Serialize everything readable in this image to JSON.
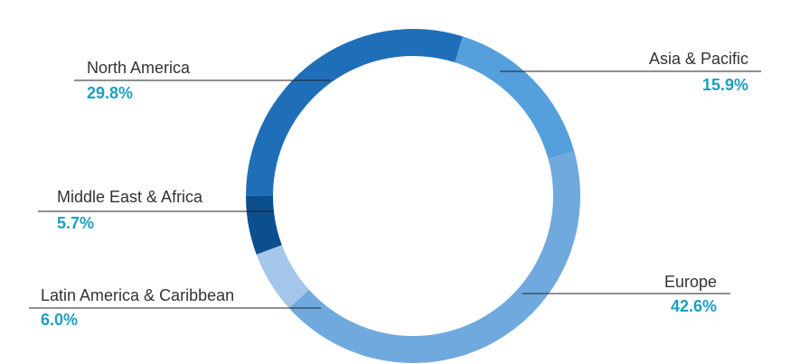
{
  "chart_data": {
    "type": "donut",
    "series": [
      {
        "name": "Asia & Pacific",
        "color": "#559fdc",
        "values": [
          15.9
        ],
        "value_labels": [
          "15.9%"
        ]
      },
      {
        "name": "Europe",
        "color": "#6fa9de",
        "values": [
          42.6
        ],
        "value_labels": [
          "42.6%"
        ]
      },
      {
        "name": "Latin America & Caribbean",
        "color": "#a3c6ea",
        "values": [
          6.0
        ],
        "value_labels": [
          "6.0%"
        ]
      },
      {
        "name": "Middle East & Africa",
        "color": "#0b4f8e",
        "values": [
          5.7
        ],
        "value_labels": [
          "5.7%"
        ]
      },
      {
        "name": "North America",
        "color": "#1f6fb8",
        "values": [
          29.8
        ],
        "value_labels": [
          "29.8%"
        ]
      }
    ]
  }
}
